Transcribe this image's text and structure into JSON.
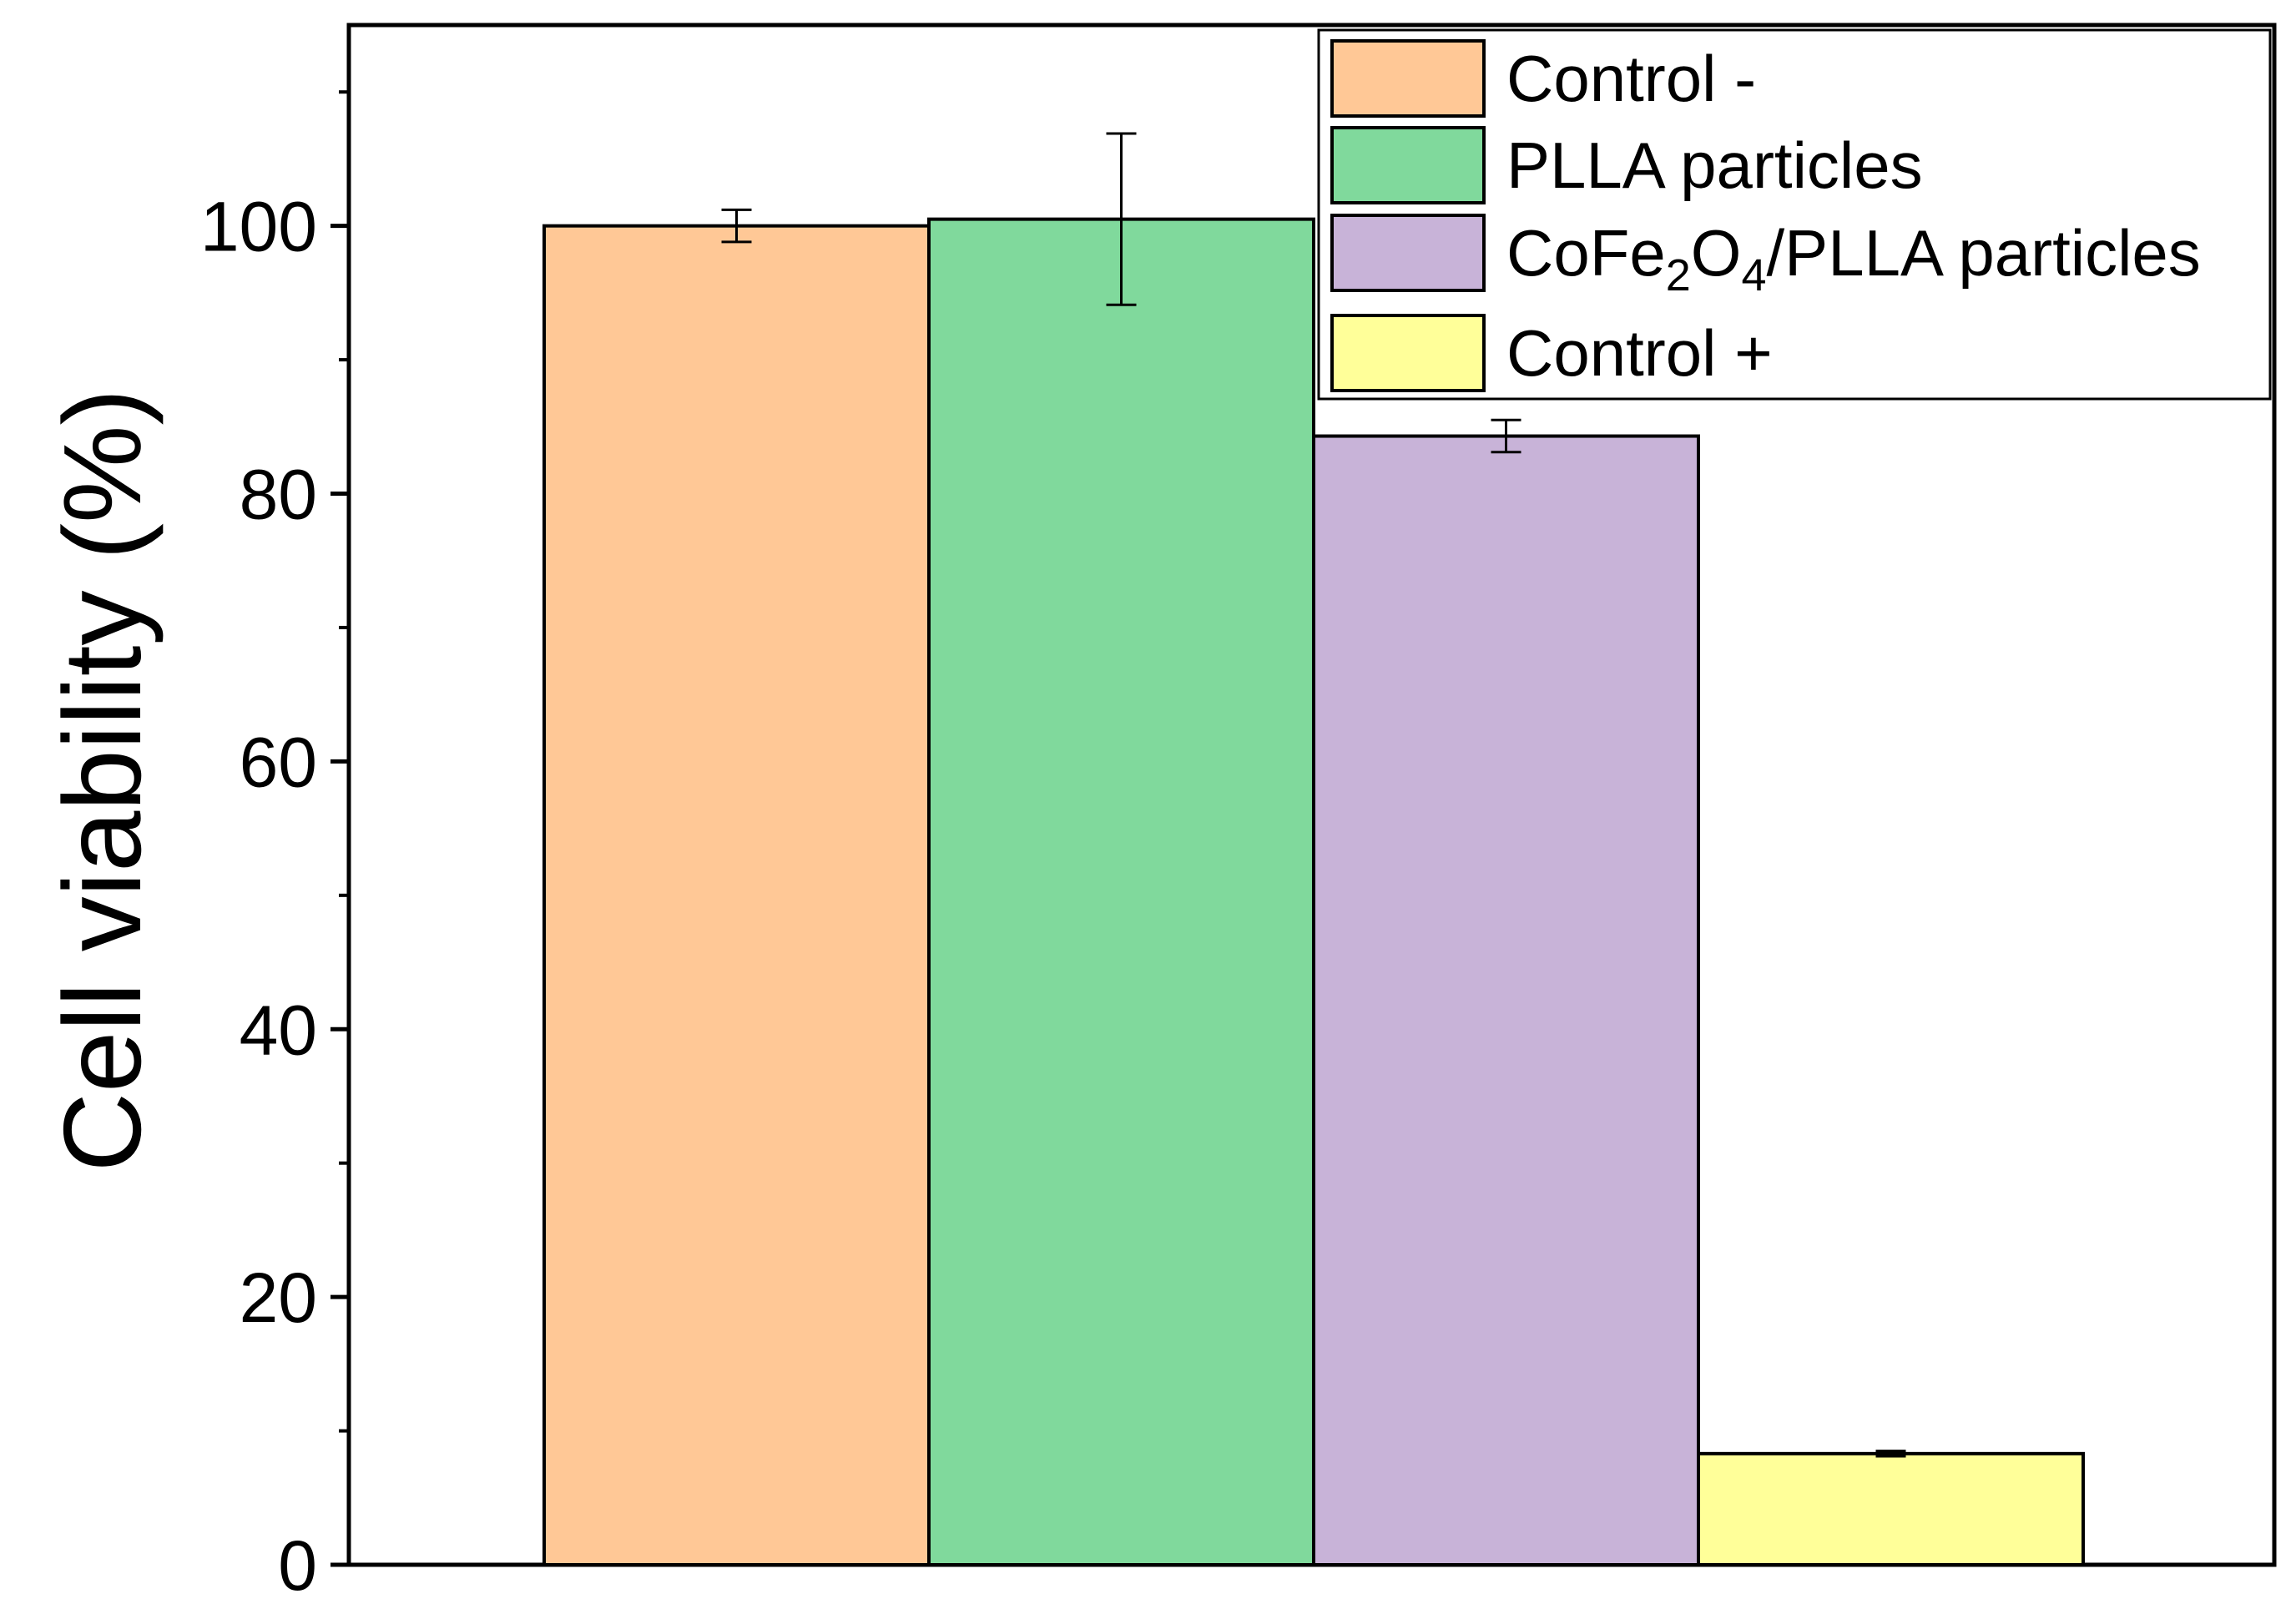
{
  "chart_data": {
    "type": "bar",
    "xlabel": "",
    "ylabel": "Cell viability (%)",
    "ylim": [
      0,
      115
    ],
    "yticks": [
      0,
      20,
      40,
      60,
      80,
      100
    ],
    "minor_yticks": [
      10,
      30,
      50,
      70,
      90,
      110
    ],
    "grid": false,
    "legend_position": "top-right",
    "series": [
      {
        "name": "Control -",
        "legend_prefix": "Control -",
        "value": 100,
        "error": 1.2,
        "color": "#FFC896"
      },
      {
        "name": "PLLA particles",
        "legend_prefix": "PLLA particles",
        "value": 100.5,
        "error": 6.4,
        "color": "#80D99C"
      },
      {
        "name": "CoFe2O4/PLLA particles",
        "legend_prefix": "CoFe",
        "legend_sub1": "2",
        "legend_mid": "O",
        "legend_sub2": "4",
        "legend_suffix": "/PLLA particles",
        "value": 84.3,
        "error": 1.2,
        "color": "#C8B3D8"
      },
      {
        "name": "Control +",
        "legend_prefix": "Control +",
        "value": 8.3,
        "error": 0.2,
        "color": "#FFFF99"
      }
    ]
  }
}
